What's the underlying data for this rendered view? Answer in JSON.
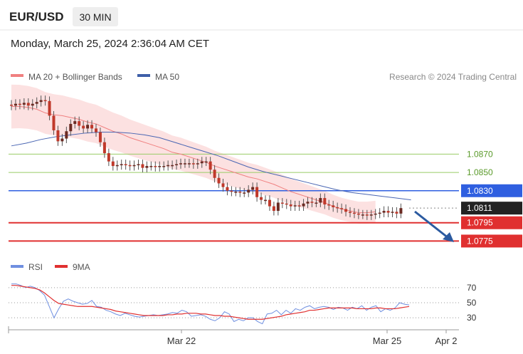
{
  "header": {
    "symbol": "EUR/USD",
    "timeframe": "30 MIN",
    "datetime": "Monday, March 25, 2024 2:36:04 AM CET"
  },
  "legend": {
    "ma20_label": "MA 20 + Bollinger Bands",
    "ma50_label": "MA 50",
    "credit": "Research © 2024 Trading Central",
    "rsi_label": "RSI",
    "ma9_label": "9MA"
  },
  "colors": {
    "ma20": "#f08080",
    "band_fill": "#fcdcdc",
    "ma50": "#4a66b3",
    "resistance": "#99cc66",
    "resistance_text": "#5a9a2a",
    "pivot": "#2f5fe0",
    "support": "#e03030",
    "last": "#222222",
    "candle": "#c0392b",
    "rsi": "#6f8fe0",
    "rsi_ma": "#e03030",
    "arrow": "#2b5aa0"
  },
  "chart_data": {
    "type": "candlestick",
    "price_range": [
      1.0766,
      1.0945
    ],
    "levels": [
      {
        "name": "resistance 2",
        "value": 1.087,
        "label": "1.0870",
        "kind": "resistance"
      },
      {
        "name": "resistance 1",
        "value": 1.085,
        "label": "1.0850",
        "kind": "resistance"
      },
      {
        "name": "pivot",
        "value": 1.083,
        "label": "1.0830",
        "kind": "pivot"
      },
      {
        "name": "last",
        "value": 1.0811,
        "label": "1.0811",
        "kind": "last"
      },
      {
        "name": "support 1",
        "value": 1.0795,
        "label": "1.0795",
        "kind": "support"
      },
      {
        "name": "support 2",
        "value": 1.0775,
        "label": "1.0775",
        "kind": "support"
      }
    ],
    "x_ticks": [
      "Mar 22",
      "Mar 25",
      "Apr 2"
    ],
    "close": [
      1.0924,
      1.0923,
      1.0925,
      1.0924,
      1.0926,
      1.0923,
      1.0925,
      1.0927,
      1.0929,
      1.0928,
      1.0912,
      1.0896,
      1.0884,
      1.0887,
      1.0895,
      1.0903,
      1.0906,
      1.0901,
      1.0898,
      1.0902,
      1.0898,
      1.0894,
      1.0883,
      1.0871,
      1.0862,
      1.0857,
      1.0858,
      1.0859,
      1.0858,
      1.0857,
      1.0858,
      1.0859,
      1.0855,
      1.0857,
      1.0857,
      1.0856,
      1.0857,
      1.0857,
      1.0858,
      1.0858,
      1.0859,
      1.086,
      1.086,
      1.086,
      1.0859,
      1.086,
      1.0862,
      1.0862,
      1.0853,
      1.0844,
      1.0838,
      1.0834,
      1.083,
      1.0829,
      1.0829,
      1.0828,
      1.0828,
      1.0831,
      1.0834,
      1.0823,
      1.082,
      1.082,
      1.0813,
      1.0808,
      1.0817,
      1.0816,
      1.0815,
      1.0813,
      1.0814,
      1.0813,
      1.0816,
      1.0818,
      1.0817,
      1.0817,
      1.0822,
      1.0815,
      1.0814,
      1.0812,
      1.0811,
      1.081,
      1.0807,
      1.0806,
      1.0805,
      1.0804,
      1.0804,
      1.0803,
      1.0804,
      1.0805,
      1.0806,
      1.0808,
      1.0806,
      1.0807,
      1.0805,
      1.0811
    ],
    "ma20": [
      1.0922,
      1.0922,
      1.0921,
      1.0919,
      1.0915,
      1.0913,
      1.0912,
      1.091,
      1.0908,
      1.0905,
      1.0903,
      1.0899,
      1.0895,
      1.0892,
      1.0888,
      1.0885,
      1.0882,
      1.0879,
      1.0876,
      1.0872,
      1.087,
      1.0867,
      1.0864,
      1.0861,
      1.0857,
      1.0854,
      1.0851,
      1.0848,
      1.0845,
      1.0843,
      1.084,
      1.0837,
      1.0833,
      1.0829,
      1.0826,
      1.0823,
      1.082,
      1.0817,
      1.0813,
      1.081,
      1.0808,
      1.0806,
      1.0806,
      1.0807
    ],
    "ma20_x": [
      0,
      2,
      4,
      6,
      8,
      10,
      12,
      14,
      16,
      18,
      20,
      22,
      24,
      26,
      28,
      30,
      32,
      34,
      36,
      38,
      40,
      42,
      44,
      46,
      48,
      50,
      52,
      54,
      56,
      58,
      60,
      62,
      64,
      66,
      68,
      70,
      72,
      74,
      76,
      78,
      80,
      82,
      84,
      86
    ],
    "ma50": [
      1.0879,
      1.0882,
      1.0886,
      1.0889,
      1.0891,
      1.0893,
      1.0894,
      1.0894,
      1.0893,
      1.0891,
      1.0888,
      1.0883,
      1.0878,
      1.0873,
      1.0868,
      1.0862,
      1.0856,
      1.0851,
      1.0847,
      1.0843,
      1.0839,
      1.0835,
      1.0831,
      1.0828,
      1.0826,
      1.0824,
      1.0822,
      1.082
    ],
    "ma50_x": [
      0,
      4,
      8,
      12,
      16,
      20,
      24,
      28,
      32,
      36,
      40,
      44,
      48,
      52,
      56,
      60,
      64,
      68,
      72,
      76,
      80,
      84,
      88,
      92,
      96,
      100,
      104,
      108
    ],
    "rsi": {
      "range": [
        15,
        85
      ],
      "ticks": [
        70,
        50,
        30
      ],
      "rsi": [
        75,
        75,
        73,
        70,
        72,
        70,
        66,
        60,
        45,
        30,
        42,
        52,
        55,
        52,
        50,
        48,
        49,
        53,
        45,
        44,
        40,
        38,
        35,
        33,
        36,
        34,
        32,
        31,
        32,
        33,
        34,
        33,
        34,
        35,
        37,
        36,
        40,
        38,
        32,
        33,
        34,
        32,
        28,
        26,
        30,
        38,
        35,
        25,
        28,
        26,
        30,
        30,
        25,
        22,
        35,
        36,
        40,
        34,
        40,
        36,
        42,
        40,
        44,
        46,
        42,
        44,
        45,
        44,
        41,
        44,
        43,
        40,
        44,
        42,
        46,
        40,
        44,
        46,
        38,
        42,
        40,
        43,
        50,
        48,
        47
      ],
      "ma9": [
        73,
        73,
        72,
        71,
        70,
        69,
        67,
        63,
        58,
        53,
        49,
        48,
        47,
        46,
        45,
        45,
        45,
        45,
        44,
        43,
        42,
        41,
        39,
        38,
        37,
        36,
        35,
        34,
        33,
        33,
        33,
        33,
        33,
        34,
        34,
        35,
        35,
        36,
        36,
        36,
        35,
        35,
        34,
        33,
        33,
        32,
        32,
        31,
        30,
        29,
        28,
        28,
        28,
        28,
        29,
        30,
        31,
        32,
        34,
        35,
        36,
        37,
        38,
        40,
        40,
        41,
        42,
        43,
        43,
        43,
        43,
        43,
        43,
        42,
        42,
        42,
        42,
        43,
        43,
        42,
        42,
        42,
        43,
        44,
        45
      ]
    }
  }
}
